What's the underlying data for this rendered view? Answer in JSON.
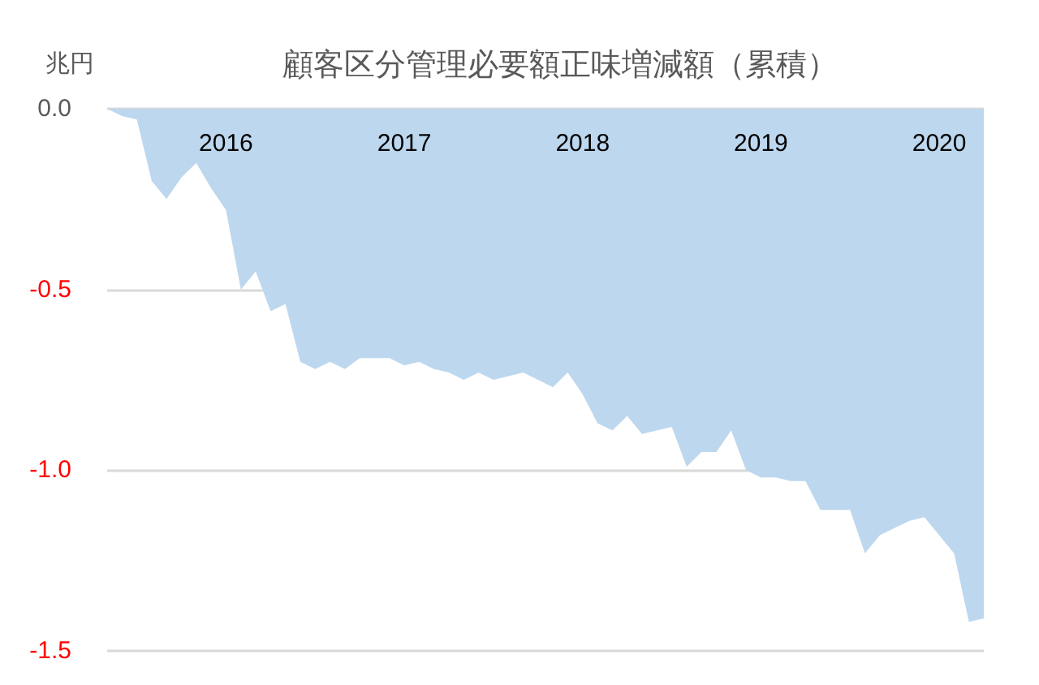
{
  "chart_data": {
    "type": "area",
    "title": "顧客区分管理必要額正味増減額（累積）",
    "ylabel": "兆円",
    "categories": [
      null,
      null,
      null,
      null,
      null,
      null,
      null,
      null,
      "2016",
      null,
      null,
      null,
      null,
      null,
      null,
      null,
      null,
      null,
      null,
      null,
      "2017",
      null,
      null,
      null,
      null,
      null,
      null,
      null,
      null,
      null,
      null,
      null,
      "2018",
      null,
      null,
      null,
      null,
      null,
      null,
      null,
      null,
      null,
      null,
      null,
      "2019",
      null,
      null,
      null,
      null,
      null,
      null,
      null,
      null,
      null,
      null,
      null,
      "2020",
      null,
      null,
      null
    ],
    "values": [
      0,
      -0.02,
      -0.03,
      -0.2,
      -0.25,
      -0.19,
      -0.15,
      -0.22,
      -0.28,
      -0.5,
      -0.45,
      -0.56,
      -0.54,
      -0.7,
      -0.72,
      -0.7,
      -0.72,
      -0.69,
      -0.69,
      -0.69,
      -0.71,
      -0.7,
      -0.72,
      -0.73,
      -0.75,
      -0.73,
      -0.75,
      -0.74,
      -0.73,
      -0.75,
      -0.77,
      -0.73,
      -0.79,
      -0.87,
      -0.89,
      -0.85,
      -0.9,
      -0.89,
      -0.88,
      -0.99,
      -0.95,
      -0.95,
      -0.89,
      -1.0,
      -1.02,
      -1.02,
      -1.03,
      -1.03,
      -1.11,
      -1.11,
      -1.11,
      -1.23,
      -1.18,
      -1.16,
      -1.14,
      -1.13,
      -1.18,
      -1.23,
      -1.42,
      -1.41
    ],
    "color": "#bdd7ee",
    "ylim": [
      -1.5,
      0
    ],
    "yticks": [
      {
        "value": 0,
        "label": "0.0"
      },
      {
        "value": -0.5,
        "label": "-0.5"
      },
      {
        "value": -1,
        "label": "-1.0"
      },
      {
        "value": -1.5,
        "label": "-1.5"
      }
    ],
    "grid": "y"
  }
}
